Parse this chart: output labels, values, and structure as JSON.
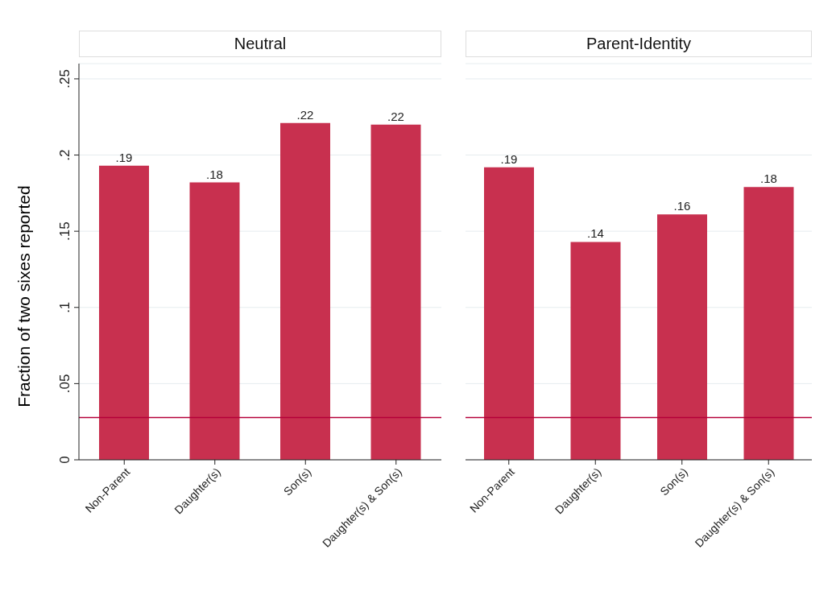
{
  "chart_data": [
    {
      "type": "bar",
      "title": "Neutral",
      "ylabel": "Fraction of two sixes reported",
      "categories": [
        "Non-Parent",
        "Daughter(s)",
        "Son(s)",
        "Daughter(s) & Son(s)"
      ],
      "values": [
        0.193,
        0.182,
        0.221,
        0.22
      ],
      "value_labels": [
        ".19",
        ".18",
        ".22",
        ".22"
      ],
      "color": "#c8304f",
      "ylim": [
        0,
        0.26
      ],
      "yticks": [
        0,
        {
          "value": 0.05,
          "label": ".05"
        },
        {
          "value": 0.1,
          "label": ".1"
        },
        {
          "value": 0.15,
          "label": ".15"
        },
        {
          "value": 0.2,
          "label": ".2"
        },
        {
          "value": 0.25,
          "label": ".25"
        }
      ],
      "grid": "y",
      "ref_lines": [
        {
          "axis": "y",
          "value": 0.0278,
          "color": "#b5003a"
        }
      ]
    },
    {
      "type": "bar",
      "title": "Parent-Identity",
      "categories": [
        "Non-Parent",
        "Daughter(s)",
        "Son(s)",
        "Daughter(s) & Son(s)"
      ],
      "values": [
        0.192,
        0.143,
        0.161,
        0.179
      ],
      "value_labels": [
        ".19",
        ".14",
        ".16",
        ".18"
      ],
      "color": "#c8304f",
      "ylim": [
        0,
        0.26
      ],
      "yticks": [
        0,
        0.05,
        0.1,
        0.15,
        0.2,
        0.25
      ],
      "grid": "y",
      "tick_labels": "x",
      "ref_lines": [
        {
          "axis": "y",
          "value": 0.0278,
          "color": "#b5003a"
        }
      ]
    }
  ]
}
